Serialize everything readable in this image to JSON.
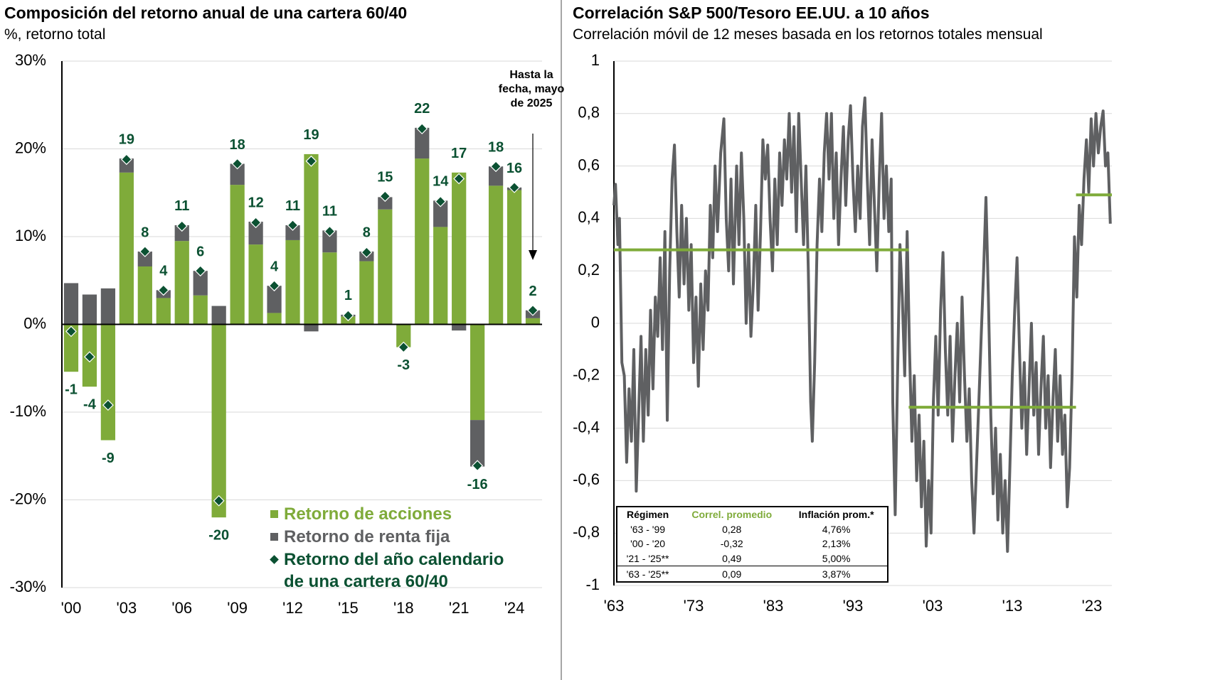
{
  "chart_data": [
    {
      "type": "bar",
      "title": "Composición del retorno anual de una cartera 60/40",
      "subtitle": "%, retorno total",
      "categories": [
        "'00",
        null,
        null,
        "'03",
        null,
        null,
        "'06",
        null,
        null,
        "'09",
        null,
        null,
        "'12",
        null,
        null,
        "'15",
        null,
        null,
        "'18",
        null,
        null,
        "'21",
        null,
        null,
        "'24",
        null
      ],
      "series": [
        {
          "name": "Retorno de acciones",
          "color": "#7fab3a",
          "values": [
            -5.4,
            -7.1,
            -13.2,
            17.3,
            6.6,
            3.0,
            9.5,
            3.3,
            -22.0,
            15.9,
            9.1,
            1.3,
            9.6,
            19.4,
            8.2,
            0.9,
            7.2,
            13.1,
            -2.6,
            18.9,
            11.1,
            17.3,
            -10.9,
            15.8,
            15.3,
            0.7
          ]
        },
        {
          "name": "Retorno de renta fija",
          "color": "#5f6062",
          "values": [
            4.7,
            3.4,
            4.1,
            1.6,
            1.7,
            0.9,
            1.8,
            2.8,
            2.1,
            2.4,
            2.6,
            3.1,
            1.7,
            -0.8,
            2.5,
            0.2,
            1.1,
            1.4,
            0.0,
            3.5,
            3.0,
            -0.7,
            -5.3,
            2.2,
            0.3,
            0.9
          ]
        },
        {
          "name": "Retorno del año calendario de una cartera 60/40",
          "color": "#0b5132",
          "marker": "diamond",
          "values": [
            -0.8,
            -3.7,
            -9.2,
            18.8,
            8.3,
            3.9,
            11.2,
            6.1,
            -20.1,
            18.3,
            11.6,
            4.4,
            11.3,
            18.6,
            10.6,
            1.0,
            8.2,
            14.6,
            -2.6,
            22.3,
            14.0,
            16.6,
            -16.1,
            18.0,
            15.6,
            1.6
          ],
          "value_labels": [
            "-1",
            "-4",
            "-9",
            "19",
            "8",
            "4",
            "11",
            "6",
            "-20",
            "18",
            "12",
            "4",
            "11",
            "19",
            "11",
            "1",
            "8",
            "15",
            "-3",
            "22",
            "14",
            "17",
            "-16",
            "18",
            "16",
            "2"
          ]
        }
      ],
      "ylim": [
        -30,
        30
      ],
      "yticks": [
        {
          "value": -30,
          "label": "-30%"
        },
        {
          "value": -20,
          "label": "-20%"
        },
        {
          "value": -10,
          "label": "-10%"
        },
        {
          "value": 0,
          "label": "0%"
        },
        {
          "value": 10,
          "label": "10%"
        },
        {
          "value": 20,
          "label": "20%"
        },
        {
          "value": 30,
          "label": "30%"
        }
      ],
      "grid": true,
      "annotation": "Hasta la fecha, mayo de 2025"
    },
    {
      "type": "line",
      "title": "Correlación S&P 500/Tesoro EE.UU. a 10 años",
      "subtitle": "Correlación móvil de 12 meses basada en los retornos totales mensual",
      "color": "#5f6062",
      "x": [
        1963.0,
        1963.2,
        1963.5,
        1963.7,
        1964.0,
        1964.3,
        1964.6,
        1964.9,
        1965.2,
        1965.5,
        1965.8,
        1966.1,
        1966.4,
        1966.7,
        1967.0,
        1967.3,
        1967.6,
        1967.9,
        1968.2,
        1968.5,
        1968.8,
        1969.1,
        1969.4,
        1969.7,
        1970.0,
        1970.3,
        1970.6,
        1970.9,
        1971.2,
        1971.5,
        1971.8,
        1972.1,
        1972.4,
        1972.7,
        1973.0,
        1973.3,
        1973.6,
        1973.9,
        1974.2,
        1974.5,
        1974.8,
        1975.1,
        1975.4,
        1975.7,
        1976.0,
        1976.4,
        1976.8,
        1977.1,
        1977.4,
        1977.7,
        1978.0,
        1978.4,
        1978.7,
        1979.0,
        1979.3,
        1979.6,
        1979.9,
        1980.2,
        1980.5,
        1980.8,
        1981.1,
        1981.4,
        1981.7,
        1982.0,
        1982.3,
        1982.6,
        1982.9,
        1983.2,
        1983.5,
        1983.8,
        1984.1,
        1984.4,
        1984.7,
        1985.0,
        1985.3,
        1985.6,
        1985.9,
        1986.2,
        1986.5,
        1986.8,
        1987.1,
        1987.4,
        1987.7,
        1987.9,
        1988.2,
        1988.5,
        1988.8,
        1989.1,
        1989.4,
        1989.7,
        1990.0,
        1990.3,
        1990.6,
        1990.9,
        1991.2,
        1991.5,
        1991.8,
        1992.1,
        1992.4,
        1992.7,
        1993.0,
        1993.3,
        1993.6,
        1993.9,
        1994.2,
        1994.5,
        1994.8,
        1995.1,
        1995.4,
        1995.7,
        1996.0,
        1996.3,
        1996.6,
        1996.9,
        1997.2,
        1997.5,
        1997.8,
        1998.0,
        1998.3,
        1998.6,
        1998.9,
        1999.2,
        1999.5,
        1999.8,
        2000.1,
        2000.4,
        2000.7,
        2001.0,
        2001.3,
        2001.6,
        2001.9,
        2002.2,
        2002.5,
        2002.8,
        2003.1,
        2003.4,
        2003.7,
        2004.0,
        2004.3,
        2004.6,
        2004.9,
        2005.2,
        2005.5,
        2005.8,
        2006.1,
        2006.4,
        2006.7,
        2007.0,
        2007.3,
        2007.6,
        2007.9,
        2008.2,
        2008.5,
        2008.8,
        2009.1,
        2009.4,
        2009.7,
        2010.0,
        2010.3,
        2010.6,
        2010.9,
        2011.2,
        2011.5,
        2011.8,
        2012.1,
        2012.4,
        2012.7,
        2013.0,
        2013.3,
        2013.6,
        2013.9,
        2014.2,
        2014.5,
        2014.8,
        2015.1,
        2015.4,
        2015.7,
        2016.0,
        2016.3,
        2016.6,
        2016.9,
        2017.2,
        2017.5,
        2017.8,
        2018.1,
        2018.4,
        2018.7,
        2019.0,
        2019.3,
        2019.6,
        2019.9,
        2020.2,
        2020.5,
        2020.8,
        2021.1,
        2021.4,
        2021.7,
        2022.0,
        2022.3,
        2022.6,
        2022.9,
        2023.2,
        2023.5,
        2023.8,
        2024.1,
        2024.4,
        2024.7,
        2025.0,
        2025.3
      ],
      "values": [
        0.45,
        0.53,
        0.3,
        0.4,
        -0.15,
        -0.2,
        -0.53,
        -0.25,
        -0.45,
        -0.1,
        -0.64,
        -0.35,
        -0.05,
        -0.45,
        -0.1,
        -0.35,
        0.05,
        -0.25,
        0.1,
        -0.05,
        0.25,
        -0.1,
        0.35,
        -0.37,
        0.2,
        0.55,
        0.68,
        0.35,
        0.1,
        0.45,
        0.15,
        0.4,
        0.05,
        0.3,
        -0.15,
        0.1,
        -0.24,
        0.15,
        -0.1,
        0.2,
        0.05,
        0.45,
        0.25,
        0.6,
        0.35,
        0.65,
        0.78,
        0.4,
        0.2,
        0.55,
        0.15,
        0.6,
        0.3,
        0.65,
        0.4,
        0.0,
        0.3,
        -0.05,
        0.15,
        0.45,
        0.05,
        0.35,
        0.7,
        0.55,
        0.68,
        0.4,
        0.2,
        0.55,
        0.3,
        0.65,
        0.45,
        0.7,
        0.55,
        0.8,
        0.5,
        0.75,
        0.35,
        0.8,
        0.55,
        0.3,
        0.6,
        0.2,
        -0.3,
        -0.45,
        -0.15,
        0.3,
        0.55,
        0.35,
        0.65,
        0.8,
        0.55,
        0.8,
        0.4,
        0.65,
        0.3,
        0.55,
        0.75,
        0.45,
        0.7,
        0.83,
        0.55,
        0.35,
        0.6,
        0.4,
        0.75,
        0.86,
        0.55,
        0.3,
        0.7,
        0.45,
        0.2,
        0.55,
        0.8,
        0.4,
        0.6,
        0.35,
        0.55,
        -0.3,
        -0.73,
        -0.2,
        0.3,
        0.1,
        -0.2,
        0.35,
        -0.1,
        -0.45,
        -0.2,
        -0.6,
        -0.35,
        -0.7,
        -0.45,
        -0.85,
        -0.6,
        -0.8,
        -0.3,
        -0.05,
        -0.35,
        0.05,
        0.27,
        -0.1,
        -0.35,
        -0.05,
        -0.45,
        -0.2,
        0.0,
        -0.3,
        0.1,
        -0.2,
        -0.45,
        -0.25,
        -0.6,
        -0.8,
        -0.55,
        -0.3,
        -0.05,
        0.2,
        0.48,
        0.1,
        -0.35,
        -0.65,
        -0.4,
        -0.75,
        -0.5,
        -0.8,
        -0.6,
        -0.87,
        -0.55,
        -0.2,
        0.05,
        0.25,
        -0.1,
        -0.4,
        -0.15,
        -0.5,
        -0.25,
        0.0,
        -0.35,
        -0.15,
        -0.5,
        -0.25,
        -0.05,
        -0.4,
        -0.2,
        -0.55,
        -0.3,
        -0.1,
        -0.45,
        -0.2,
        -0.5,
        -0.35,
        -0.7,
        -0.55,
        -0.2,
        0.33,
        0.1,
        0.45,
        0.3,
        0.55,
        0.7,
        0.5,
        0.78,
        0.6,
        0.8,
        0.65,
        0.75,
        0.81,
        0.6,
        0.65,
        0.38
      ],
      "xlim": [
        1963,
        2025.5
      ],
      "xticks": [
        {
          "value": 1963,
          "label": "'63"
        },
        {
          "value": 1973,
          "label": "'73"
        },
        {
          "value": 1983,
          "label": "'83"
        },
        {
          "value": 1993,
          "label": "'93"
        },
        {
          "value": 2003,
          "label": "'03"
        },
        {
          "value": 2013,
          "label": "'13"
        },
        {
          "value": 2023,
          "label": "'23"
        }
      ],
      "ylim": [
        -1,
        1
      ],
      "yticks": [
        -1,
        {
          "value": -0.8,
          "label": "-0,8"
        },
        {
          "value": -0.6,
          "label": "-0,6"
        },
        {
          "value": -0.4,
          "label": "-0,4"
        },
        {
          "value": -0.2,
          "label": "-0,2"
        },
        0,
        {
          "value": 0.2,
          "label": "0,2"
        },
        {
          "value": 0.4,
          "label": "0,4"
        },
        {
          "value": 0.6,
          "label": "0,6"
        },
        {
          "value": 0.8,
          "label": "0,8"
        },
        1
      ],
      "grid": true,
      "regime_lines": [
        {
          "start": 1963,
          "end": 2000,
          "value": 0.28,
          "color": "#7fab3a"
        },
        {
          "start": 2000,
          "end": 2021,
          "value": -0.32,
          "color": "#7fab3a"
        },
        {
          "start": 2021,
          "end": 2025.5,
          "value": 0.49,
          "color": "#7fab3a"
        }
      ],
      "table": {
        "header": [
          "Régimen",
          "Correl. promedio",
          "Inflación prom.*"
        ],
        "rows": [
          [
            "'63 - '99",
            "0,28",
            "4,76%"
          ],
          [
            "'00 - '20",
            "-0,32",
            "2,13%"
          ],
          [
            "'21 - '25**",
            "0,49",
            "5,00%"
          ],
          [
            "'63 - '25**",
            "0,09",
            "3,87%"
          ]
        ]
      }
    }
  ]
}
